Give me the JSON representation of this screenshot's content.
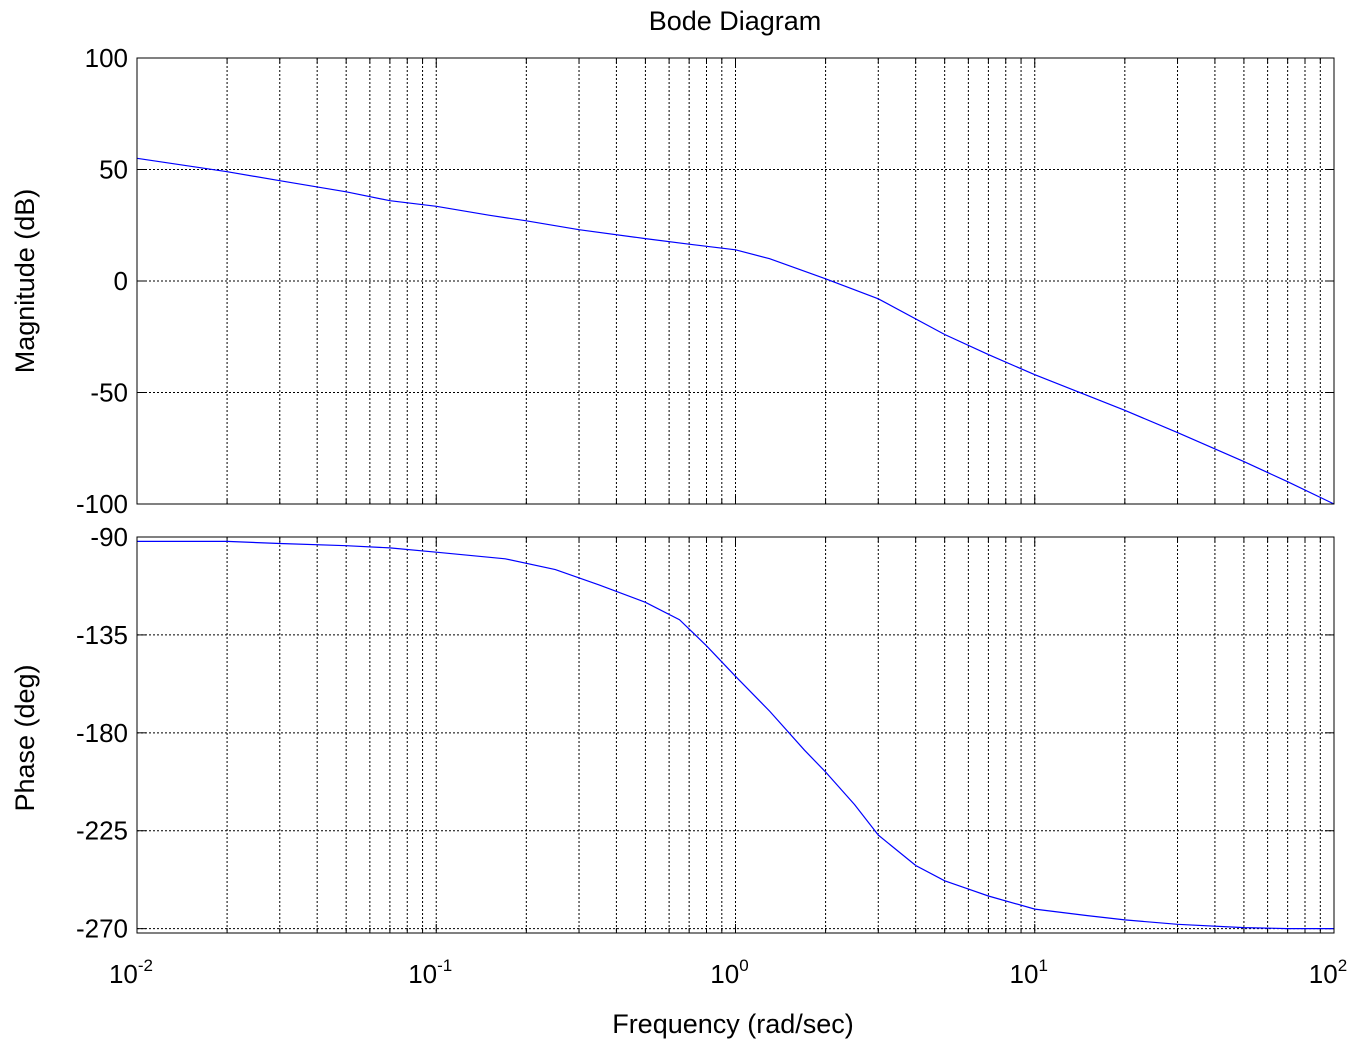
{
  "chart_data": {
    "type": "line",
    "title": "Bode Diagram",
    "xlabel": "Frequency  (rad/sec)",
    "x_scale": "log",
    "xlim": [
      0.01,
      100
    ],
    "x_tick_labels": [
      {
        "base": "10",
        "exp": "-2"
      },
      {
        "base": "10",
        "exp": "-1"
      },
      {
        "base": "10",
        "exp": "0"
      },
      {
        "base": "10",
        "exp": "1"
      },
      {
        "base": "10",
        "exp": "2"
      }
    ],
    "grid": true,
    "line_color": "#0000ff",
    "panels": [
      {
        "name": "magnitude",
        "ylabel": "Magnitude (dB)",
        "ylim": [
          -100,
          100
        ],
        "y_ticks": [
          "100",
          "50",
          "0",
          "-50",
          "-100"
        ],
        "y_tick_values": [
          100,
          50,
          0,
          -50,
          -100
        ],
        "series": [
          {
            "x": [
              0.01,
              0.02,
              0.03,
              0.05,
              0.07,
              0.1,
              0.15,
              0.2,
              0.3,
              0.5,
              0.7,
              1.0,
              1.3,
              2.0,
              3.0,
              5.0,
              7.0,
              10,
              20,
              30,
              50,
              70,
              100
            ],
            "values": [
              55,
              49,
              45,
              40,
              36,
              33.5,
              29.5,
              27,
              23,
              19,
              16.5,
              14,
              10,
              1,
              -8,
              -24,
              -33,
              -42,
              -58,
              -68,
              -81,
              -90,
              -100
            ]
          }
        ]
      },
      {
        "name": "phase",
        "ylabel": "Phase (deg)",
        "ylim": [
          -272,
          -90
        ],
        "y_ticks": [
          "-90",
          "-135",
          "-180",
          "-225",
          "-270"
        ],
        "y_tick_values": [
          -90,
          -135,
          -180,
          -225,
          -270
        ],
        "series": [
          {
            "x": [
              0.01,
              0.02,
              0.03,
              0.05,
              0.07,
              0.1,
              0.17,
              0.25,
              0.35,
              0.5,
              0.65,
              0.8,
              1.0,
              1.3,
              1.7,
              2.0,
              2.5,
              3.0,
              4.0,
              5.0,
              7.0,
              10,
              15,
              20,
              30,
              50,
              70,
              100
            ],
            "values": [
              -92,
              -92,
              -93,
              -94,
              -95,
              -97,
              -100,
              -105,
              -112,
              -120,
              -128,
              -140,
              -154,
              -170,
              -188,
              -198,
              -213,
              -227,
              -241,
              -248,
              -255,
              -261,
              -264,
              -266,
              -268,
              -269.5,
              -270,
              -270
            ]
          }
        ]
      }
    ]
  }
}
